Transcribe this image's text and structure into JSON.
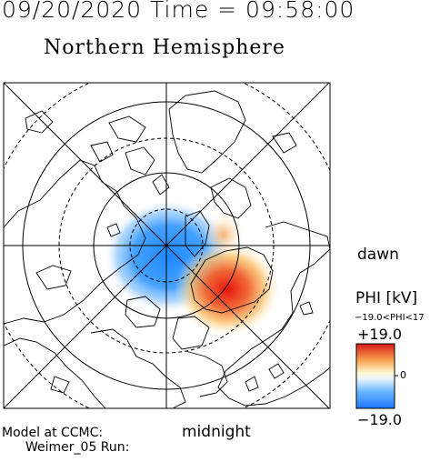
{
  "header": {
    "time_title": "09/20/2020 Time = 09:58:00",
    "hemisphere_title": "Northern Hemisphere"
  },
  "labels": {
    "dawn": "dawn",
    "midnight": "midnight",
    "model_line1": "Model at CCMC:",
    "model_line2": "Weimer_05 Run:"
  },
  "colorbar": {
    "title": "PHI [kV]",
    "range_text": "−19.0<PHI<17",
    "max_label": "+19.0",
    "zero_label": "0",
    "min_label": "−19.0",
    "colors": {
      "high": "#d7191c",
      "mid": "#ffffff",
      "low": "#1e88ff"
    }
  },
  "map": {
    "potential_min_kv": -19.0,
    "potential_max_kv": 19.0,
    "grid": "on",
    "colors": {
      "negative_cell": "#1e88ff",
      "positive_cell": "#e8140e",
      "lines": "#000000"
    }
  }
}
